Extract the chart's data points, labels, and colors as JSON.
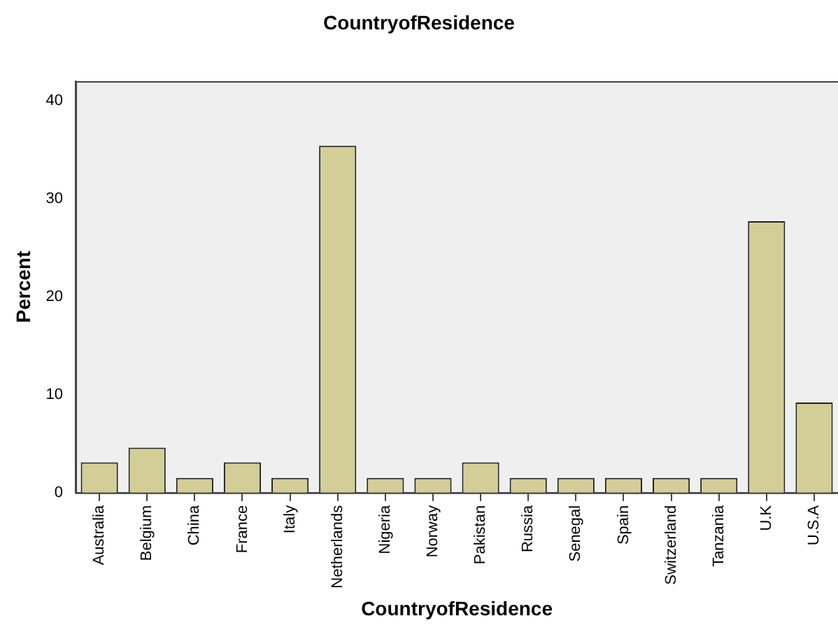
{
  "chart_data": {
    "type": "bar",
    "title": "CountryofResidence",
    "xlabel": "CountryofResidence",
    "ylabel": "Percent",
    "categories": [
      "Australia",
      "Belgium",
      "China",
      "France",
      "Italy",
      "Netherlands",
      "Nigeria",
      "Norway",
      "Pakistan",
      "Russia",
      "Senegal",
      "Spain",
      "Switzerland",
      "Tanzania",
      "U.K",
      "U.S.A"
    ],
    "values": [
      3.1,
      4.6,
      1.5,
      3.1,
      1.5,
      35.4,
      1.5,
      1.5,
      3.1,
      1.5,
      1.5,
      1.5,
      1.5,
      1.5,
      27.7,
      9.2
    ],
    "color": "#d3ce97",
    "ylim": [
      0,
      42
    ],
    "yticks": [
      0,
      10,
      20,
      30,
      40
    ],
    "grid": false,
    "legend": false
  }
}
